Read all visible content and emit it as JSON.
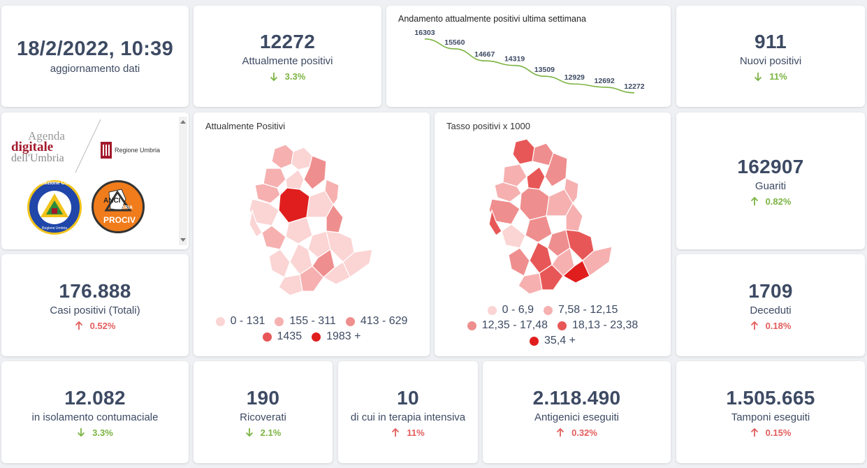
{
  "header": {
    "datetime": "18/2/2022, 10:39",
    "datetime_label": "aggiornamento dati"
  },
  "kpis": {
    "attualmente_positivi": {
      "value": "12272",
      "label": "Attualmente positivi",
      "delta": "3.3%",
      "direction": "down"
    },
    "nuovi_positivi": {
      "value": "911",
      "label": "Nuovi positivi",
      "delta": "11%",
      "direction": "down"
    },
    "guariti": {
      "value": "162907",
      "label": "Guariti",
      "delta": "0.82%",
      "direction": "up"
    },
    "casi_totali": {
      "value": "176.888",
      "label": "Casi positivi (Totali)",
      "delta": "0.52%",
      "direction": "up"
    },
    "deceduti": {
      "value": "1709",
      "label": "Deceduti",
      "delta": "0.18%",
      "direction": "up"
    },
    "isolamento": {
      "value": "12.082",
      "label": "in isolamento contumaciale",
      "delta": "3.3%",
      "direction": "down"
    },
    "ricoverati": {
      "value": "190",
      "label": "Ricoverati",
      "delta": "2.1%",
      "direction": "down"
    },
    "terapia": {
      "value": "10",
      "label": "di cui in terapia intensiva",
      "delta": "11%",
      "direction": "up"
    },
    "antigenici": {
      "value": "2.118.490",
      "label": "Antigenici eseguiti",
      "delta": "0.32%",
      "direction": "up"
    },
    "tamponi": {
      "value": "1.505.665",
      "label": "Tamponi eseguiti",
      "delta": "0.15%",
      "direction": "up"
    }
  },
  "trend": {
    "title": "Andamento attualmente positivi ultima settimana",
    "values": [
      16303,
      15560,
      14667,
      14319,
      13509,
      12929,
      12692,
      12272
    ],
    "line_color": "#7bb342"
  },
  "logos": {
    "agenda_line1": "Agenda",
    "agenda_line2": "digitale",
    "agenda_line3": "dell'Umbria",
    "regione": "Regione Umbria",
    "protezione": "Protezione Civile",
    "protezione_sub": "Regione Umbria",
    "anci_1": "ANCI",
    "anci_2": "UMBRIA",
    "anci_3": "PROCIV"
  },
  "map_positivi": {
    "title": "Attualmente Positivi",
    "legend": [
      {
        "label": "0 - 131",
        "color": "#fbd4d4"
      },
      {
        "label": "155 - 311",
        "color": "#f6b0b0"
      },
      {
        "label": "413 - 629",
        "color": "#ef8e8e"
      },
      {
        "label": "1435",
        "color": "#e85757"
      },
      {
        "label": "1983 +",
        "color": "#e01e1e"
      }
    ]
  },
  "map_tasso": {
    "title": "Tasso positivi x 1000",
    "legend": [
      {
        "label": "0 - 6,9",
        "color": "#fbd4d4"
      },
      {
        "label": "7,58 - 12,15",
        "color": "#f6b0b0"
      },
      {
        "label": "12,35 - 17,48",
        "color": "#ef8e8e"
      },
      {
        "label": "18,13 - 23,38",
        "color": "#e85757"
      },
      {
        "label": "35,4 +",
        "color": "#e01e1e"
      }
    ]
  },
  "colors": {
    "down": "#7bb342",
    "up": "#e35d5d",
    "text": "#3d4a63"
  }
}
